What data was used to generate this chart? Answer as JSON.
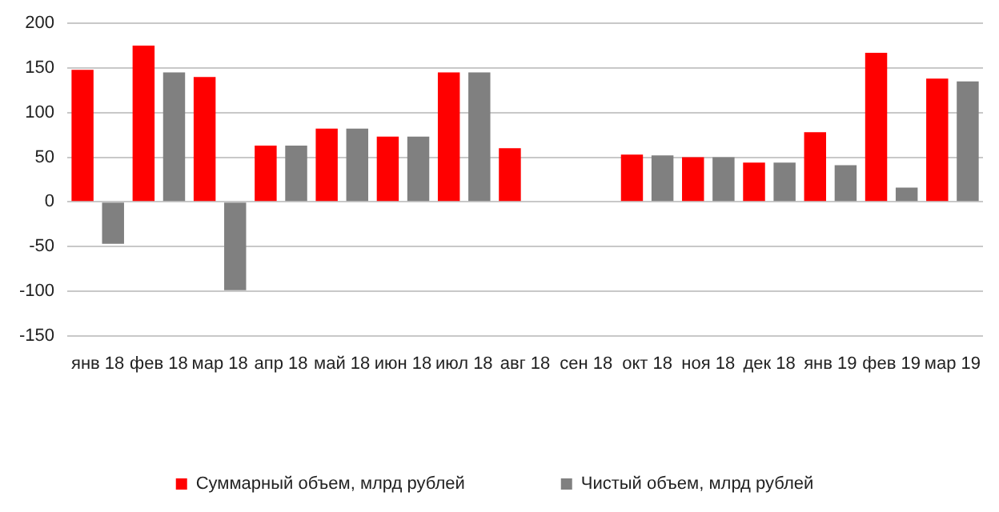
{
  "chart_data": {
    "type": "bar",
    "categories": [
      "янв 18",
      "фев 18",
      "мар 18",
      "апр 18",
      "май 18",
      "июн 18",
      "июл 18",
      "авг 18",
      "сен 18",
      "окт 18",
      "ноя 18",
      "дек 18",
      "янв 19",
      "фев 19",
      "мар 19"
    ],
    "series": [
      {
        "name": "Суммарный объем, млрд рублей",
        "color": "#ff0000",
        "values": [
          148,
          175,
          140,
          63,
          82,
          73,
          145,
          60,
          null,
          53,
          50,
          44,
          78,
          167,
          138
        ]
      },
      {
        "name": "Чистый объем, млрд рублей",
        "color": "#808080",
        "values": [
          -47,
          145,
          -99,
          63,
          82,
          73,
          145,
          null,
          null,
          52,
          50,
          44,
          41,
          16,
          135
        ]
      }
    ],
    "ylim": [
      -150,
      200
    ],
    "yticks": [
      -150,
      -100,
      -50,
      0,
      50,
      100,
      150,
      200
    ],
    "grid": "y",
    "legend": "bottom"
  }
}
